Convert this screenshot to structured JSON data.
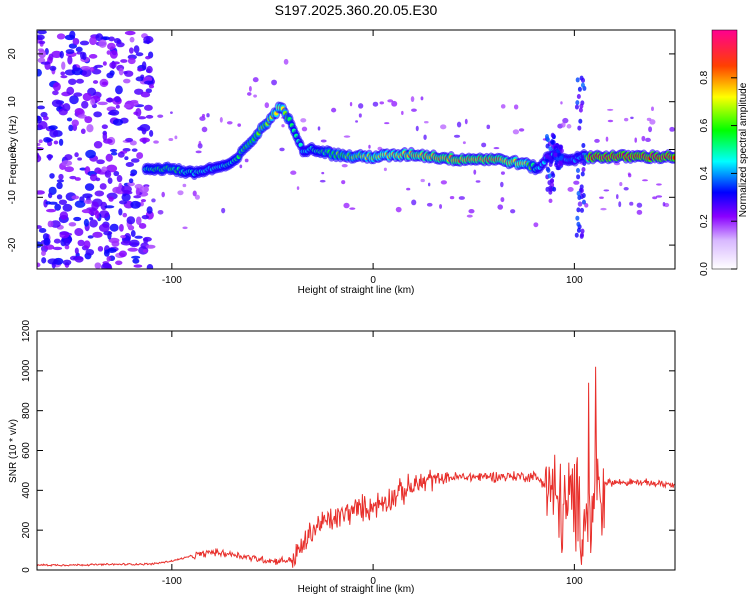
{
  "figure_title": "S197.2025.360.20.05.E30",
  "chart_data": [
    {
      "type": "heatmap",
      "title": "S197.2025.360.20.05.E30",
      "xlabel": "Height of straight line (km)",
      "ylabel": "Frequency (Hz)",
      "xlim": [
        -167,
        150
      ],
      "ylim": [
        -25,
        25
      ],
      "x_ticks": [
        -100,
        0,
        100
      ],
      "y_ticks": [
        -20,
        -10,
        0,
        10,
        20
      ],
      "colorbar": {
        "label": "Normalized spectral amplitude",
        "range": [
          0,
          1
        ],
        "ticks": [
          0.0,
          0.2,
          0.4,
          0.6,
          0.8
        ],
        "colors": [
          "#ffffff",
          "#8a00ff",
          "#0000ff",
          "#00ffff",
          "#00ff00",
          "#ffff00",
          "#ff8000",
          "#ff0000",
          "#ff0090"
        ]
      },
      "ridge": {
        "x": [
          -113,
          -100,
          -90,
          -80,
          -70,
          -60,
          -52,
          -46,
          -40,
          -35,
          -28,
          -20,
          -10,
          0,
          20,
          40,
          60,
          75,
          82,
          86,
          90,
          95,
          100,
          105,
          108,
          120,
          150
        ],
        "freq": [
          -4,
          -4,
          -5,
          -4,
          -3,
          2,
          6,
          9,
          5,
          0,
          0,
          -1,
          -1.5,
          -1.5,
          -1,
          -2,
          -2,
          -3,
          -4,
          -2,
          -1,
          -2,
          -2,
          -1.5,
          -1.5,
          -1.5,
          -1.5
        ],
        "amplitude": [
          0.45,
          0.5,
          0.45,
          0.4,
          0.45,
          0.55,
          0.6,
          0.7,
          0.45,
          0.4,
          0.45,
          0.55,
          0.6,
          0.65,
          0.75,
          0.8,
          0.8,
          0.7,
          0.4,
          0.35,
          0.4,
          0.35,
          0.35,
          0.4,
          0.95,
          0.95,
          0.95
        ]
      },
      "noise_region": [
        -167,
        -110
      ]
    },
    {
      "type": "line",
      "xlabel": "Height of straight line (km)",
      "ylabel": "SNR (10 * v/v)",
      "xlim": [
        -167,
        150
      ],
      "ylim": [
        0,
        1200
      ],
      "x_ticks": [
        -100,
        0,
        100
      ],
      "y_ticks": [
        0,
        200,
        400,
        600,
        800,
        1000,
        1200
      ],
      "color": "#e8302c",
      "series": [
        {
          "name": "SNR",
          "x": [
            -167,
            -150,
            -130,
            -110,
            -100,
            -90,
            -80,
            -70,
            -60,
            -50,
            -40,
            -35,
            -30,
            -25,
            -20,
            -10,
            0,
            10,
            20,
            25,
            30,
            40,
            60,
            80,
            85,
            88,
            90,
            95,
            100,
            103,
            105,
            108,
            110,
            112,
            115,
            130,
            150
          ],
          "y": [
            25,
            25,
            28,
            30,
            45,
            70,
            90,
            80,
            60,
            45,
            50,
            120,
            200,
            240,
            250,
            300,
            320,
            370,
            420,
            440,
            460,
            465,
            470,
            470,
            440,
            400,
            350,
            300,
            350,
            250,
            300,
            200,
            400,
            350,
            440,
            440,
            430
          ]
        }
      ]
    }
  ]
}
